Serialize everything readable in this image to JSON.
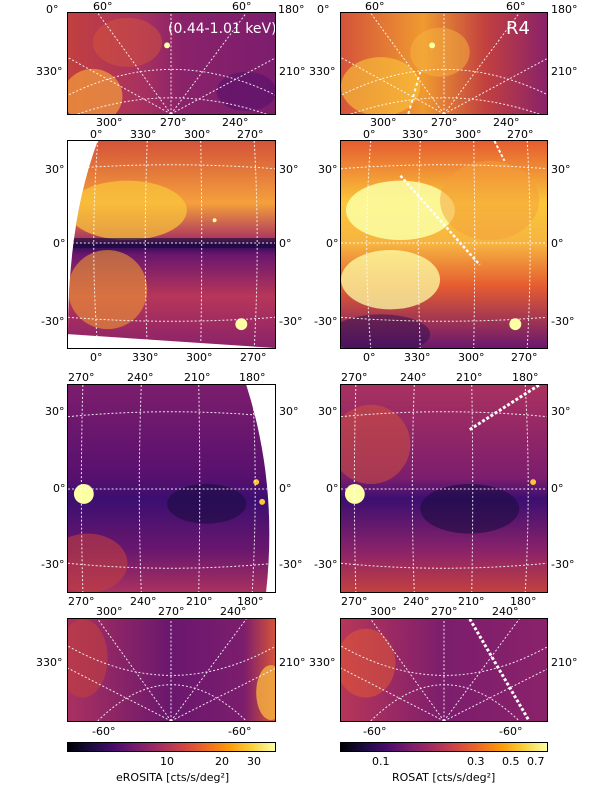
{
  "band_label": "(0.44-1.01 keV)",
  "instrument_label": "R4",
  "rows": [
    {
      "id": "north-cap",
      "top_ticks": [
        "60°",
        "60°"
      ],
      "top_right": "180°",
      "left_labels": [
        "0°",
        "330°"
      ],
      "right_labels": [
        "210°"
      ],
      "bottom_ticks": [
        "300°",
        "330°",
        "270°",
        "300°",
        "240°",
        "270°"
      ]
    },
    {
      "id": "east-strip",
      "top_ticks": [
        "0°",
        "330°",
        "300°",
        "270°"
      ],
      "left_labels": [
        "30°",
        "0°",
        "-30°"
      ],
      "right_labels": [
        "30°",
        "0°",
        "-30°"
      ],
      "bottom_ticks": [
        "0°",
        "330°",
        "300°",
        "270°"
      ]
    },
    {
      "id": "west-strip",
      "top_ticks": [
        "270°",
        "240°",
        "210°",
        "180°"
      ],
      "left_labels": [
        "30°",
        "0°",
        "-30°"
      ],
      "right_labels": [
        "30°",
        "0°",
        "-30°"
      ],
      "bottom_ticks": [
        "270°",
        "240°",
        "210°",
        "180°"
      ]
    },
    {
      "id": "south-cap",
      "top_ticks": [
        "300°",
        "270°",
        "240°"
      ],
      "left_labels": [
        "330°"
      ],
      "right_labels": [
        "210°"
      ],
      "bottom_ticks": [
        "-60°",
        "-60°"
      ]
    }
  ],
  "colorbars": {
    "erosita": {
      "ticks": [
        "10",
        "20",
        "30"
      ],
      "label": "eROSITA [cts/s/deg²]"
    },
    "rosat": {
      "ticks": [
        "0.1",
        "0.3",
        "0.5",
        "0.7"
      ],
      "label": "ROSAT [cts/s/deg²]"
    }
  },
  "colormap": "inferno",
  "colors": {
    "bright": "#fcffa4",
    "mid": "#e55c30",
    "dark": "#000004",
    "grid": "#ffffff"
  }
}
